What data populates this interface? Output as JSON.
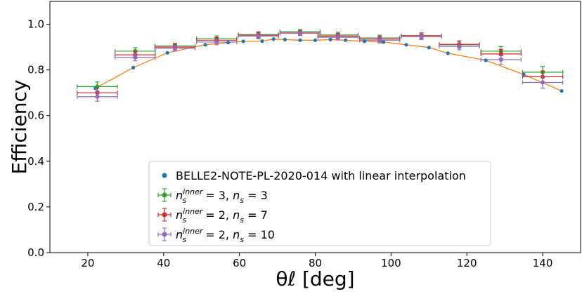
{
  "chart_data": {
    "type": "scatter",
    "xlabel": "θℓ   [deg]",
    "ylabel": "Efficiency",
    "xlim": [
      10,
      150
    ],
    "ylim": [
      0,
      1.1
    ],
    "x_ticks": [
      "20",
      "40",
      "60",
      "80",
      "100",
      "120",
      "140"
    ],
    "y_ticks": [
      "0.0",
      "0.2",
      "0.4",
      "0.6",
      "0.8",
      "1.0"
    ],
    "grid": false,
    "legend_position": "bottom-center",
    "reference": {
      "name": "BELLE2-NOTE-PL-2020-014 with linear interpolation",
      "color": "#1f77b4",
      "line_color": "#ff7f0e",
      "x": [
        22,
        32,
        41,
        51,
        57,
        61,
        66,
        69,
        72,
        76,
        80,
        84,
        88,
        93,
        98,
        104,
        110,
        115,
        125,
        135,
        145
      ],
      "y": [
        0.72,
        0.81,
        0.875,
        0.91,
        0.92,
        0.925,
        0.926,
        0.935,
        0.933,
        0.93,
        0.93,
        0.933,
        0.93,
        0.925,
        0.922,
        0.91,
        0.898,
        0.873,
        0.842,
        0.78,
        0.708
      ]
    },
    "series": [
      {
        "label_main": "n",
        "label_sub": "s",
        "label_sup": "inner",
        "label_rest": " = 3, ",
        "label_main2": "n",
        "label_sub2": "s",
        "label_rest2": " = 3",
        "color": "#2ca02c",
        "x": [
          22.5,
          32.5,
          43,
          54,
          65,
          76,
          86,
          97,
          108,
          118,
          129,
          140
        ],
        "xerr": 5.3,
        "y": [
          0.727,
          0.882,
          0.905,
          0.937,
          0.955,
          0.967,
          0.953,
          0.94,
          0.95,
          0.91,
          0.882,
          0.79
        ],
        "yerr": [
          0.02,
          0.015,
          0.012,
          0.012,
          0.012,
          0.01,
          0.012,
          0.012,
          0.012,
          0.015,
          0.02,
          0.025
        ]
      },
      {
        "label_main": "n",
        "label_sub": "s",
        "label_sup": "inner",
        "label_rest": " = 2, ",
        "label_main2": "n",
        "label_sub2": "s",
        "label_rest2": " = 7",
        "color": "#d62728",
        "x": [
          22.5,
          32.5,
          43,
          54,
          65,
          76,
          86,
          97,
          108,
          118,
          129,
          140
        ],
        "xerr": 5.3,
        "y": [
          0.7,
          0.866,
          0.9,
          0.93,
          0.952,
          0.962,
          0.948,
          0.935,
          0.95,
          0.912,
          0.87,
          0.77
        ],
        "yerr": [
          0.02,
          0.015,
          0.012,
          0.012,
          0.012,
          0.01,
          0.012,
          0.012,
          0.012,
          0.015,
          0.02,
          0.025
        ]
      },
      {
        "label_main": "n",
        "label_sub": "s",
        "label_sup": "inner",
        "label_rest": " = 2, ",
        "label_main2": "n",
        "label_sub2": "s",
        "label_rest2": " = 10",
        "color": "#9467bd",
        "x": [
          22.5,
          32.5,
          43,
          54,
          65,
          76,
          86,
          97,
          108,
          118,
          129,
          140
        ],
        "xerr": 5.3,
        "y": [
          0.683,
          0.855,
          0.895,
          0.922,
          0.948,
          0.96,
          0.943,
          0.93,
          0.945,
          0.903,
          0.845,
          0.745
        ],
        "yerr": [
          0.02,
          0.015,
          0.012,
          0.012,
          0.012,
          0.01,
          0.012,
          0.012,
          0.012,
          0.015,
          0.02,
          0.025
        ]
      }
    ]
  }
}
